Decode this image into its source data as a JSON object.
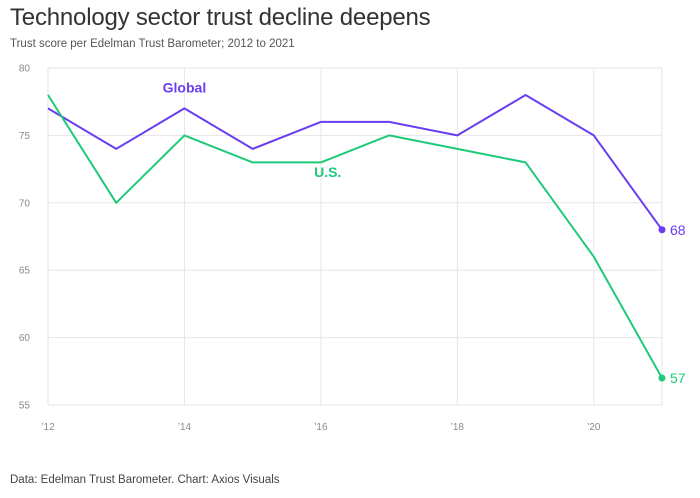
{
  "header": {
    "title": "Technology sector trust decline deepens",
    "subtitle": "Trust score per Edelman Trust Barometer; 2012 to 2021"
  },
  "footer": {
    "source": "Data: Edelman Trust Barometer. Chart: Axios Visuals"
  },
  "chart_data": {
    "type": "line",
    "title": "Technology sector trust decline deepens",
    "subtitle": "Trust score per Edelman Trust Barometer; 2012 to 2021",
    "xlabel": "",
    "ylabel": "",
    "x": [
      2012,
      2013,
      2014,
      2015,
      2016,
      2017,
      2018,
      2019,
      2020,
      2021
    ],
    "x_ticks": [
      {
        "value": 2012,
        "label": "’12"
      },
      {
        "value": 2014,
        "label": "’14"
      },
      {
        "value": 2016,
        "label": "’16"
      },
      {
        "value": 2018,
        "label": "’18"
      },
      {
        "value": 2020,
        "label": "’20"
      }
    ],
    "y_ticks": [
      55,
      60,
      65,
      70,
      75,
      80
    ],
    "xlim": [
      2012,
      2021
    ],
    "ylim": [
      55,
      80
    ],
    "grid": true,
    "series": [
      {
        "name": "Global",
        "color": "#6a3df0",
        "values": [
          77,
          74,
          77,
          74,
          76,
          76,
          75,
          78,
          75,
          68
        ],
        "label_at": {
          "x": 2014,
          "y": 78.2
        },
        "end_label": "68"
      },
      {
        "name": "U.S.",
        "color": "#1fc97a",
        "values": [
          78,
          70,
          75,
          73,
          73,
          75,
          74,
          73,
          66,
          57
        ],
        "label_at": {
          "x": 2016.1,
          "y": 71.9
        },
        "end_label": "57"
      }
    ]
  }
}
